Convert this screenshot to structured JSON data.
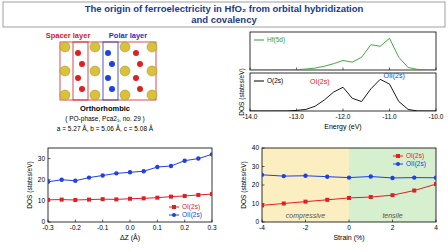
{
  "title_lines": [
    "The origin of ferroelectricity in HfO₂ from orbital hybridization",
    "and covalency"
  ],
  "structure": {
    "spacer_label": "Spacer layer",
    "polar_label": "Polar layer",
    "phase": "Orthorhombic",
    "group": "( PO-phase, Pca2₁, no. 29 )",
    "lattice": "a = 5.27 Å, b = 5.06 Å, c = 5.08 Å"
  },
  "chart_data": [
    {
      "type": "line",
      "x": [
        -14,
        -13.8,
        -13.6,
        -13.4,
        -13.2,
        -13,
        -12.8,
        -12.6,
        -12.4,
        -12.2,
        -12,
        -11.8,
        -11.6,
        -11.4,
        -11.2,
        -11,
        -10.8,
        -10.6,
        -10.4,
        -10.2,
        -10
      ],
      "series": [
        {
          "name": "Hf(5d)",
          "color": "#2ca02c",
          "values": [
            0,
            0,
            0,
            0,
            0,
            0.01,
            0.03,
            0.06,
            0.12,
            0.2,
            0.3,
            0.25,
            0.4,
            0.8,
            0.75,
            1.0,
            0.4,
            0.08,
            0.02,
            0,
            0
          ]
        }
      ],
      "xlim": [
        -14,
        -10
      ],
      "ylim": [
        0,
        1.2
      ],
      "xticks": [
        -14,
        -13,
        -12,
        -11,
        -10
      ],
      "tick_labels": false,
      "legend": "upper left"
    },
    {
      "type": "line",
      "x": [
        -14,
        -13.8,
        -13.6,
        -13.4,
        -13.2,
        -13,
        -12.8,
        -12.6,
        -12.4,
        -12.2,
        -12,
        -11.8,
        -11.6,
        -11.4,
        -11.2,
        -11,
        -10.8,
        -10.6,
        -10.4,
        -10.2,
        -10
      ],
      "series": [
        {
          "name": "O(2s)",
          "color": "#000000",
          "values": [
            0,
            0,
            0,
            0,
            0,
            0.02,
            0.05,
            0.15,
            0.35,
            0.6,
            0.75,
            0.4,
            0.3,
            0.7,
            1.0,
            0.85,
            0.3,
            0.05,
            0,
            0,
            0
          ]
        }
      ],
      "xlim": [
        -14,
        -10
      ],
      "ylim": [
        0,
        1.2
      ],
      "xticks": [
        {
          "value": -14,
          "label": "-14.0"
        },
        {
          "value": -13,
          "label": "-13.0"
        },
        {
          "value": -12,
          "label": "-12.0"
        },
        {
          "value": -11,
          "label": "-11.0"
        },
        {
          "value": -10,
          "label": "-10.0"
        }
      ],
      "tick_labels": "x",
      "legend": "upper left",
      "x_label": "Energy (eV)",
      "y_label": "DOS (states/eV)",
      "annotations": [
        {
          "text": "OI(2s)",
          "x": -12.5,
          "y": 0.85,
          "color": "#e02020"
        },
        {
          "text": "OII(2s)",
          "x": -10.9,
          "y": 1.05,
          "color": "#2040e0"
        }
      ]
    },
    {
      "type": "line",
      "x": [
        -0.3,
        -0.25,
        -0.2,
        -0.15,
        -0.1,
        -0.05,
        0,
        0.05,
        0.1,
        0.15,
        0.2,
        0.25,
        0.3
      ],
      "series": [
        {
          "name": "OI(2s)",
          "color": "#e02020",
          "marker": "square",
          "values": [
            10.5,
            10.6,
            10.4,
            10.6,
            10.8,
            10.7,
            11,
            11.2,
            11.5,
            12,
            12.3,
            12.8,
            13.2
          ]
        },
        {
          "name": "OII(2s)",
          "color": "#2040e0",
          "marker": "circle",
          "values": [
            19,
            20,
            19.5,
            21,
            22,
            23,
            23.5,
            24,
            26,
            26.5,
            29,
            30,
            32
          ]
        }
      ],
      "xlim": [
        -0.3,
        0.3
      ],
      "ylim": [
        0,
        35
      ],
      "xticks": [
        -0.3,
        -0.2,
        -0.1,
        {
          "value": 0,
          "label": "0.0"
        },
        0.1,
        0.2,
        0.3
      ],
      "yticks": [
        0,
        10,
        20,
        30
      ],
      "legend": "lower right",
      "x_label": "ΔZ (Å)",
      "y_label": "DOS (states/eV)"
    },
    {
      "type": "line",
      "x": [
        -4,
        -3,
        -2,
        -1,
        0,
        1,
        2,
        3,
        4
      ],
      "series": [
        {
          "name": "OI(2s)",
          "color": "#e02020",
          "marker": "square",
          "values": [
            9,
            10,
            11,
            12,
            13,
            13.5,
            14.5,
            17,
            20.5
          ]
        },
        {
          "name": "OII(2s)",
          "color": "#2040e0",
          "marker": "circle",
          "values": [
            25.5,
            24.8,
            25,
            24.5,
            24,
            24.6,
            23.8,
            24,
            23.9
          ]
        }
      ],
      "xlim": [
        -4,
        4
      ],
      "ylim": [
        0,
        40
      ],
      "xticks": [
        -4,
        -2,
        0,
        2,
        4
      ],
      "yticks": [
        0,
        10,
        20,
        30,
        40
      ],
      "legend": "upper right",
      "x_label": "Strain (%)",
      "y_label": "DOS (states/eV)",
      "regions": [
        {
          "label": "compressive",
          "x": [
            -4,
            0
          ],
          "color": "#fbeec1"
        },
        {
          "label": "tensile",
          "x": [
            0,
            4
          ],
          "color": "#d6efcf"
        }
      ]
    }
  ]
}
